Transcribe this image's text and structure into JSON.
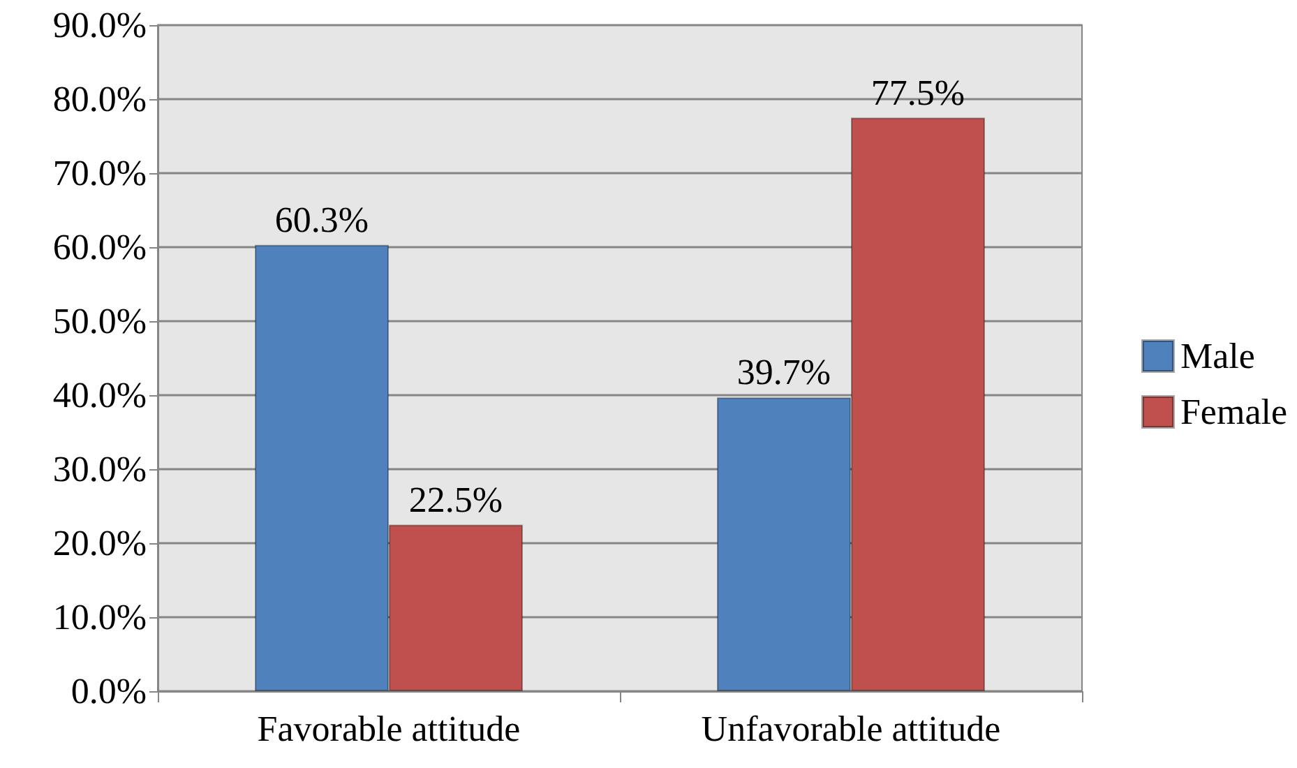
{
  "chart_data": {
    "type": "bar",
    "categories": [
      "Favorable attitude",
      "Unfavorable attitude"
    ],
    "series": [
      {
        "name": "Male",
        "color": "#4f81bd",
        "values": [
          60.3,
          39.7
        ],
        "value_labels": [
          "60.3%",
          "39.7%"
        ]
      },
      {
        "name": "Female",
        "color": "#c0504d",
        "values": [
          22.5,
          77.5
        ],
        "value_labels": [
          "22.5%",
          "77.5%"
        ]
      }
    ],
    "ylim": [
      0,
      90
    ],
    "yticks": [
      {
        "value": 0,
        "label": "0.0%"
      },
      {
        "value": 10,
        "label": "10.0%"
      },
      {
        "value": 20,
        "label": "20.0%"
      },
      {
        "value": 30,
        "label": "30.0%"
      },
      {
        "value": 40,
        "label": "40.0%"
      },
      {
        "value": 50,
        "label": "50.0%"
      },
      {
        "value": 60,
        "label": "60.0%"
      },
      {
        "value": 70,
        "label": "70.0%"
      },
      {
        "value": 80,
        "label": "80.0%"
      },
      {
        "value": 90,
        "label": "90.0%"
      }
    ],
    "grid": "y",
    "legend": "right"
  }
}
